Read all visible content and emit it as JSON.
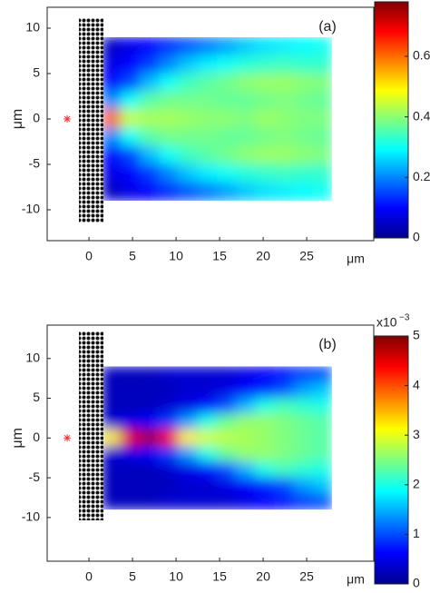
{
  "chart_data": [
    {
      "type": "heatmap",
      "panel_label": "(a)",
      "ylabel": "μm",
      "xlabel": "μm",
      "xlim": [
        -4.8,
        32.7
      ],
      "ylim": [
        -13.4,
        12.3
      ],
      "xticks": [
        0,
        5,
        10,
        15,
        20,
        25
      ],
      "yticks": [
        -10,
        -5,
        0,
        5,
        10
      ],
      "x": [
        2.6,
        4.8,
        7.0,
        9.2,
        11.4,
        13.6,
        15.8,
        18.0,
        20.2,
        22.4,
        24.6,
        26.8
      ],
      "y": [
        8,
        6,
        4,
        2,
        0,
        -2,
        -4,
        -6,
        -8
      ],
      "z": [
        [
          0.05,
          0.08,
          0.1,
          0.13,
          0.16,
          0.19,
          0.22,
          0.25,
          0.27,
          0.28,
          0.29,
          0.3
        ],
        [
          0.08,
          0.1,
          0.14,
          0.2,
          0.25,
          0.28,
          0.3,
          0.32,
          0.33,
          0.34,
          0.33,
          0.33
        ],
        [
          0.1,
          0.15,
          0.24,
          0.3,
          0.34,
          0.36,
          0.38,
          0.4,
          0.41,
          0.41,
          0.4,
          0.39
        ],
        [
          0.2,
          0.3,
          0.36,
          0.38,
          0.38,
          0.38,
          0.37,
          0.37,
          0.38,
          0.39,
          0.38,
          0.37
        ],
        [
          0.6,
          0.44,
          0.42,
          0.42,
          0.41,
          0.4,
          0.4,
          0.39,
          0.41,
          0.4,
          0.39,
          0.39
        ],
        [
          0.2,
          0.3,
          0.36,
          0.38,
          0.38,
          0.38,
          0.37,
          0.37,
          0.38,
          0.39,
          0.38,
          0.37
        ],
        [
          0.1,
          0.15,
          0.24,
          0.3,
          0.34,
          0.36,
          0.38,
          0.4,
          0.41,
          0.41,
          0.4,
          0.39
        ],
        [
          0.08,
          0.1,
          0.14,
          0.2,
          0.25,
          0.28,
          0.3,
          0.32,
          0.33,
          0.34,
          0.33,
          0.33
        ],
        [
          0.05,
          0.08,
          0.1,
          0.13,
          0.16,
          0.19,
          0.22,
          0.25,
          0.27,
          0.28,
          0.29,
          0.3
        ]
      ],
      "clim": [
        0,
        0.78
      ],
      "cticks": [
        0,
        0.2,
        0.4,
        0.6
      ]
    },
    {
      "type": "heatmap",
      "panel_label": "(b)",
      "ylabel": "μm",
      "xlabel": "μm",
      "xlim": [
        -4.8,
        32.7
      ],
      "ylim": [
        -15.5,
        14.2
      ],
      "xticks": [
        0,
        5,
        10,
        15,
        20,
        25
      ],
      "yticks": [
        -10,
        -5,
        0,
        5,
        10
      ],
      "x": [
        2.6,
        4.8,
        7.0,
        9.2,
        11.4,
        13.6,
        15.8,
        18.0,
        20.2,
        22.4,
        24.6,
        26.8
      ],
      "y": [
        8,
        6,
        4,
        2,
        0,
        -2,
        -4,
        -6,
        -8
      ],
      "z": [
        [
          0.3,
          0.3,
          0.3,
          0.4,
          0.4,
          0.4,
          0.4,
          0.5,
          0.6,
          0.7,
          0.9,
          1.0
        ],
        [
          0.3,
          0.3,
          0.3,
          0.3,
          0.4,
          0.4,
          0.5,
          0.6,
          0.8,
          1.0,
          1.4,
          1.6
        ],
        [
          0.3,
          0.3,
          0.3,
          0.4,
          0.5,
          0.7,
          1.0,
          1.5,
          2.0,
          2.2,
          2.1,
          2.0
        ],
        [
          0.4,
          0.5,
          0.6,
          0.9,
          1.4,
          2.0,
          2.4,
          2.6,
          2.6,
          2.5,
          2.4,
          2.3
        ],
        [
          3.2,
          4.5,
          4.8,
          4.4,
          3.2,
          2.9,
          2.8,
          2.7,
          2.6,
          2.5,
          2.4,
          2.3
        ],
        [
          0.4,
          0.5,
          0.6,
          0.9,
          1.4,
          2.0,
          2.4,
          2.6,
          2.6,
          2.5,
          2.4,
          2.3
        ],
        [
          0.3,
          0.3,
          0.3,
          0.4,
          0.5,
          0.7,
          1.0,
          1.5,
          2.0,
          2.2,
          2.1,
          2.0
        ],
        [
          0.3,
          0.3,
          0.3,
          0.3,
          0.4,
          0.4,
          0.5,
          0.6,
          0.8,
          1.0,
          1.4,
          1.6
        ],
        [
          0.3,
          0.3,
          0.3,
          0.4,
          0.4,
          0.4,
          0.4,
          0.5,
          0.6,
          0.7,
          0.9,
          1.0
        ]
      ],
      "clim": [
        0,
        5
      ],
      "cticks": [
        0,
        1,
        2,
        3,
        4,
        5
      ],
      "colorbar_multiplier": "x10",
      "colorbar_exponent": "−3"
    }
  ]
}
